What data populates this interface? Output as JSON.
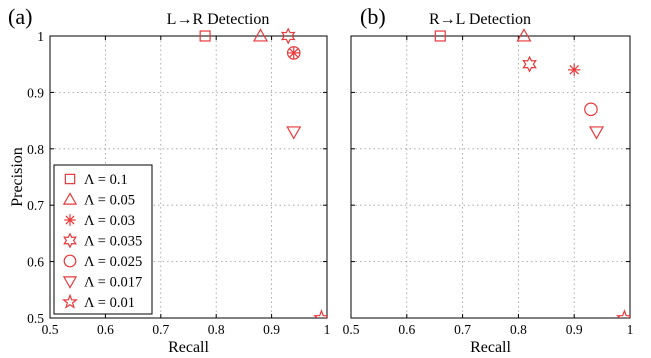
{
  "chart_data": [
    {
      "type": "scatter",
      "panel_label": "(a)",
      "title": "L→R Detection",
      "xlabel": "Recall",
      "ylabel": "Precision",
      "xlim": [
        0.5,
        1
      ],
      "ylim": [
        0.5,
        1
      ],
      "xticks": [
        "0.5",
        "0.6",
        "0.7",
        "0.8",
        "0.9",
        "1"
      ],
      "yticks": [
        "0.5",
        "0.6",
        "0.7",
        "0.8",
        "0.9",
        "1"
      ],
      "grid": true,
      "legend_position": "lower-left",
      "series": [
        {
          "name": "Λ = 0.1",
          "marker": "square",
          "x": 0.78,
          "y": 1.0
        },
        {
          "name": "Λ = 0.05",
          "marker": "triangle-up",
          "x": 0.88,
          "y": 1.0
        },
        {
          "name": "Λ = 0.03",
          "marker": "asterisk",
          "x": 0.94,
          "y": 0.97
        },
        {
          "name": "Λ = 0.035",
          "marker": "hexagram",
          "x": 0.93,
          "y": 1.0
        },
        {
          "name": "Λ = 0.025",
          "marker": "circle",
          "x": 0.94,
          "y": 0.97
        },
        {
          "name": "Λ = 0.017",
          "marker": "triangle-down",
          "x": 0.94,
          "y": 0.83
        },
        {
          "name": "Λ = 0.01",
          "marker": "pentagram",
          "x": 0.99,
          "y": 0.5
        }
      ]
    },
    {
      "type": "scatter",
      "panel_label": "(b)",
      "title": "R→L Detection",
      "xlabel": "Recall",
      "ylabel": "",
      "xlim": [
        0.5,
        1
      ],
      "ylim": [
        0.5,
        1
      ],
      "xticks": [
        "0.5",
        "0.6",
        "0.7",
        "0.8",
        "0.9",
        "1"
      ],
      "yticks": [],
      "grid": true,
      "series": [
        {
          "marker": "square",
          "x": 0.66,
          "y": 1.0
        },
        {
          "marker": "triangle-up",
          "x": 0.81,
          "y": 1.0
        },
        {
          "marker": "asterisk",
          "x": 0.9,
          "y": 0.94
        },
        {
          "marker": "hexagram",
          "x": 0.82,
          "y": 0.95
        },
        {
          "marker": "circle",
          "x": 0.93,
          "y": 0.87
        },
        {
          "marker": "triangle-down",
          "x": 0.94,
          "y": 0.83
        },
        {
          "marker": "pentagram",
          "x": 0.99,
          "y": 0.5
        }
      ]
    }
  ],
  "colors": {
    "marker": "#e8383a",
    "grid": "#9a9a9a",
    "axis": "#000000"
  }
}
